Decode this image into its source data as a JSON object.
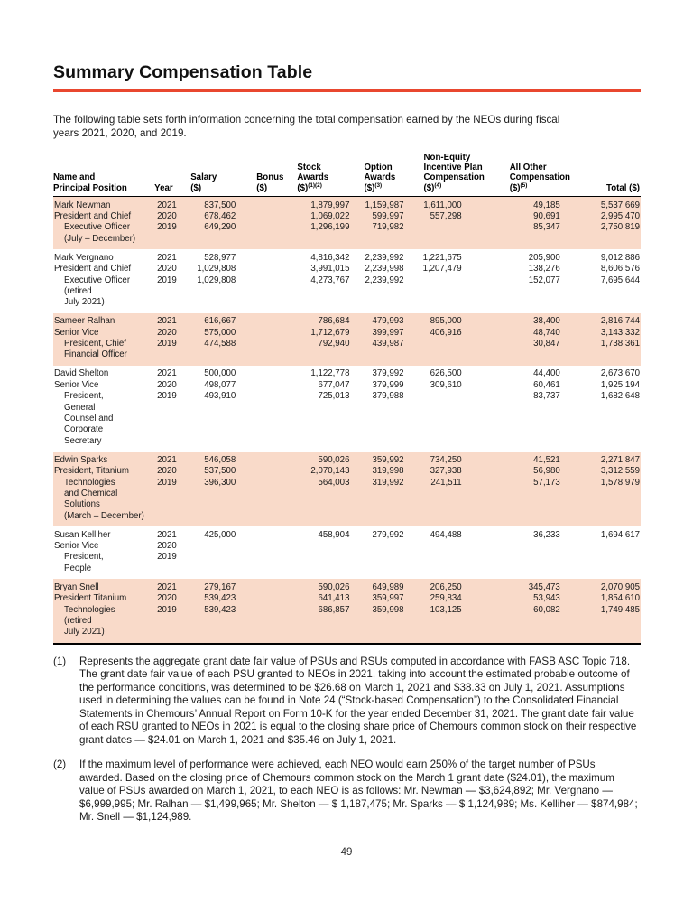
{
  "page": {
    "title": "Summary Compensation Table",
    "intro": "The following table sets forth information concerning the total compensation earned by the NEOs during fiscal years 2021, 2020, and 2019.",
    "page_number": "49",
    "accent_color": "#e9472f",
    "highlight_color": "#f9dac9"
  },
  "table": {
    "columns": [
      {
        "id": "name",
        "lines": [
          "Name and",
          "Principal Position"
        ]
      },
      {
        "id": "year",
        "lines": [
          "Year"
        ]
      },
      {
        "id": "salary",
        "lines": [
          "Salary",
          "($)"
        ]
      },
      {
        "id": "bonus",
        "lines": [
          "Bonus",
          "($)"
        ]
      },
      {
        "id": "stock",
        "lines": [
          "Stock",
          "Awards",
          "($)"
        ],
        "sup": "(1)(2)"
      },
      {
        "id": "option",
        "lines": [
          "Option",
          "Awards",
          "($)"
        ],
        "sup": "(3)"
      },
      {
        "id": "neip",
        "lines": [
          "Non-Equity",
          "Incentive Plan",
          "Compensation",
          "($)"
        ],
        "sup": "(4)"
      },
      {
        "id": "other",
        "lines": [
          "All Other",
          "Compensation",
          "($)"
        ],
        "sup": "(5)"
      },
      {
        "id": "total",
        "lines": [
          "Total ($)"
        ]
      }
    ],
    "rows": [
      {
        "highlight": true,
        "name_lines": [
          "Mark Newman",
          "President and Chief",
          "Executive Officer",
          "(July – December)"
        ],
        "indent_from": 2,
        "years": [
          "2021",
          "2020",
          "2019"
        ],
        "salary": [
          "837,500",
          "678,462",
          "649,290"
        ],
        "bonus": [
          "",
          "",
          ""
        ],
        "stock": [
          "1,879,997",
          "1,069,022",
          "1,296,199"
        ],
        "option": [
          "1,159,987",
          "599,997",
          "719,982"
        ],
        "neip": [
          "1,611,000",
          "557,298",
          ""
        ],
        "other": [
          "49,185",
          "90,691",
          "85,347"
        ],
        "total": [
          "5,537.669",
          "2,995,470",
          "2,750,819"
        ]
      },
      {
        "highlight": false,
        "name_lines": [
          "Mark Vergnano",
          "President and Chief",
          "Executive Officer",
          "(retired",
          "July 2021)"
        ],
        "indent_from": 2,
        "years": [
          "2021",
          "2020",
          "2019"
        ],
        "salary": [
          "528,977",
          "1,029,808",
          "1,029,808"
        ],
        "bonus": [
          "",
          "",
          ""
        ],
        "stock": [
          "4,816,342",
          "3,991,015",
          "4,273,767"
        ],
        "option": [
          "2,239,992",
          "2,239,998",
          "2,239,992"
        ],
        "neip": [
          "1,221,675",
          "1,207,479",
          ""
        ],
        "other": [
          "205,900",
          "138,276",
          "152,077"
        ],
        "total": [
          "9,012,886",
          "8,606,576",
          "7,695,644"
        ]
      },
      {
        "highlight": true,
        "name_lines": [
          "Sameer Ralhan",
          "Senior Vice",
          "President, Chief",
          "Financial Officer"
        ],
        "indent_from": 2,
        "years": [
          "2021",
          "2020",
          "2019"
        ],
        "salary": [
          "616,667",
          "575,000",
          "474,588"
        ],
        "bonus": [
          "",
          "",
          ""
        ],
        "stock": [
          "786,684",
          "1,712,679",
          "792,940"
        ],
        "option": [
          "479,993",
          "399,997",
          "439,987"
        ],
        "neip": [
          "895,000",
          "406,916",
          ""
        ],
        "other": [
          "38,400",
          "48,740",
          "30,847"
        ],
        "total": [
          "2,816,744",
          "3,143,332",
          "1,738,361"
        ]
      },
      {
        "highlight": false,
        "name_lines": [
          "David Shelton",
          "Senior Vice",
          "President,",
          "General",
          "Counsel and",
          "Corporate",
          "Secretary"
        ],
        "indent_from": 2,
        "years": [
          "2021",
          "2020",
          "2019"
        ],
        "salary": [
          "500,000",
          "498,077",
          "493,910"
        ],
        "bonus": [
          "",
          "",
          ""
        ],
        "stock": [
          "1,122,778",
          "677,047",
          "725,013"
        ],
        "option": [
          "379,992",
          "379,999",
          "379,988"
        ],
        "neip": [
          "626,500",
          "309,610",
          ""
        ],
        "other": [
          "44,400",
          "60,461",
          "83,737"
        ],
        "total": [
          "2,673,670",
          "1,925,194",
          "1,682,648"
        ]
      },
      {
        "highlight": true,
        "name_lines": [
          "Edwin Sparks",
          "President, Titanium",
          "Technologies",
          "and Chemical",
          "Solutions",
          "(March – December)"
        ],
        "indent_from": 2,
        "years": [
          "2021",
          "2020",
          "2019"
        ],
        "salary": [
          "546,058",
          "537,500",
          "396,300"
        ],
        "bonus": [
          "",
          "",
          ""
        ],
        "stock": [
          "590,026",
          "2,070,143",
          "564,003"
        ],
        "option": [
          "359,992",
          "319,998",
          "319,992"
        ],
        "neip": [
          "734,250",
          "327,938",
          "241,511"
        ],
        "other": [
          "41,521",
          "56,980",
          "57,173"
        ],
        "total": [
          "2,271,847",
          "3,312,559",
          "1,578,979"
        ]
      },
      {
        "highlight": false,
        "name_lines": [
          "Susan Kelliher",
          "Senior Vice",
          "President,",
          "People"
        ],
        "indent_from": 2,
        "years": [
          "2021",
          "2020",
          "2019"
        ],
        "salary": [
          "425,000",
          "",
          ""
        ],
        "bonus": [
          "",
          "",
          ""
        ],
        "stock": [
          "458,904",
          "",
          ""
        ],
        "option": [
          "279,992",
          "",
          ""
        ],
        "neip": [
          "494,488",
          "",
          ""
        ],
        "other": [
          "36,233",
          "",
          ""
        ],
        "total": [
          "1,694,617",
          "",
          ""
        ]
      },
      {
        "highlight": true,
        "name_lines": [
          "Bryan Snell",
          "President Titanium",
          "Technologies",
          "(retired",
          "July 2021)"
        ],
        "indent_from": 2,
        "years": [
          "2021",
          "2020",
          "2019"
        ],
        "salary": [
          "279,167",
          "539,423",
          "539,423"
        ],
        "bonus": [
          "",
          "",
          ""
        ],
        "stock": [
          "590,026",
          "641,413",
          "686,857"
        ],
        "option": [
          "649,989",
          "359,997",
          "359,998"
        ],
        "neip": [
          "206,250",
          "259,834",
          "103,125"
        ],
        "other": [
          "345,473",
          "53,943",
          "60,082"
        ],
        "total": [
          "2,070,905",
          "1,854,610",
          "1,749,485"
        ]
      }
    ]
  },
  "footnotes": [
    {
      "marker": "(1)",
      "text": "Represents the aggregate grant date fair value of PSUs and RSUs computed in accordance with FASB ASC Topic 718. The grant date fair value of each PSU granted to NEOs in 2021, taking into account the estimated probable outcome of the performance conditions, was determined to be $26.68 on March 1, 2021 and $38.33 on July 1, 2021. Assumptions used in determining the values can be found in Note 24 (“Stock-based Compensation”) to the Consolidated Financial Statements in Chemours’ Annual Report on Form 10-K for the year ended December 31, 2021. The grant date fair value of each RSU granted to NEOs in 2021 is equal to the closing share price of Chemours common stock on their respective grant dates — $24.01 on March 1, 2021 and $35.46 on July 1, 2021."
    },
    {
      "marker": "(2)",
      "text": "If the maximum level of performance were achieved, each NEO would earn 250% of the target number of PSUs awarded. Based on the closing price of Chemours common stock on the March 1 grant date ($24.01), the maximum value of PSUs awarded on March 1, 2021, to each NEO is as follows: Mr. Newman — $3,624,892; Mr. Vergnano — $6,999,995; Mr. Ralhan — $1,499,965; Mr. Shelton — $ 1,187,475; Mr. Sparks — $ 1,124,989; Ms. Kelliher — $874,984; Mr. Snell — $1,124,989."
    }
  ]
}
